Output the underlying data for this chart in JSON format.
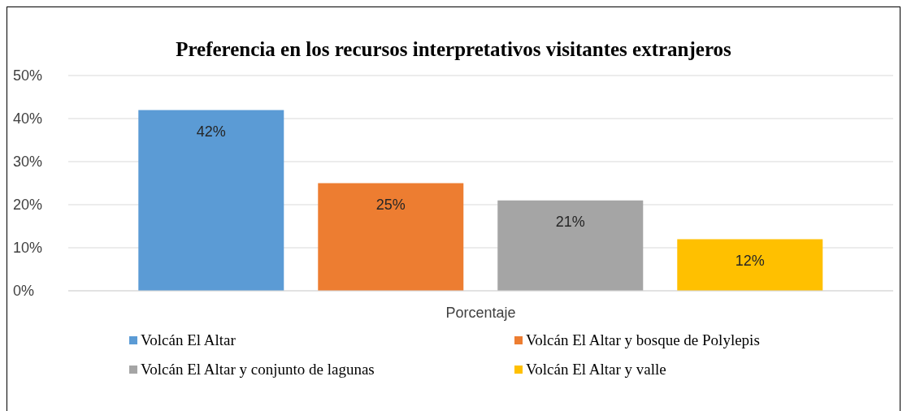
{
  "chart_data": {
    "type": "bar",
    "title": "Preferencia en los recursos interpretativos visitantes extranjeros",
    "categories": [
      "Porcentaje"
    ],
    "series": [
      {
        "name": "Volcán El Altar",
        "color": "#5b9bd5",
        "values": [
          42
        ],
        "value_labels": [
          "42%"
        ]
      },
      {
        "name": "Volcán El Altar y bosque de Polylepis",
        "color": "#ed7d31",
        "values": [
          25
        ],
        "value_labels": [
          "25%"
        ]
      },
      {
        "name": "Volcán El Altar y conjunto de lagunas",
        "color": "#a5a5a5",
        "values": [
          21
        ],
        "value_labels": [
          "21%"
        ]
      },
      {
        "name": "Volcán El Altar y valle",
        "color": "#ffc000",
        "values": [
          12
        ],
        "value_labels": [
          "12%"
        ]
      }
    ],
    "ylim": [
      0,
      50
    ],
    "yticks": [
      {
        "value": 0,
        "label": "0%"
      },
      {
        "value": 10,
        "label": "10%"
      },
      {
        "value": 20,
        "label": "20%"
      },
      {
        "value": 30,
        "label": "30%"
      },
      {
        "value": 40,
        "label": "40%"
      },
      {
        "value": 50,
        "label": "50%"
      }
    ],
    "grid": "y",
    "legend": "bottom"
  }
}
